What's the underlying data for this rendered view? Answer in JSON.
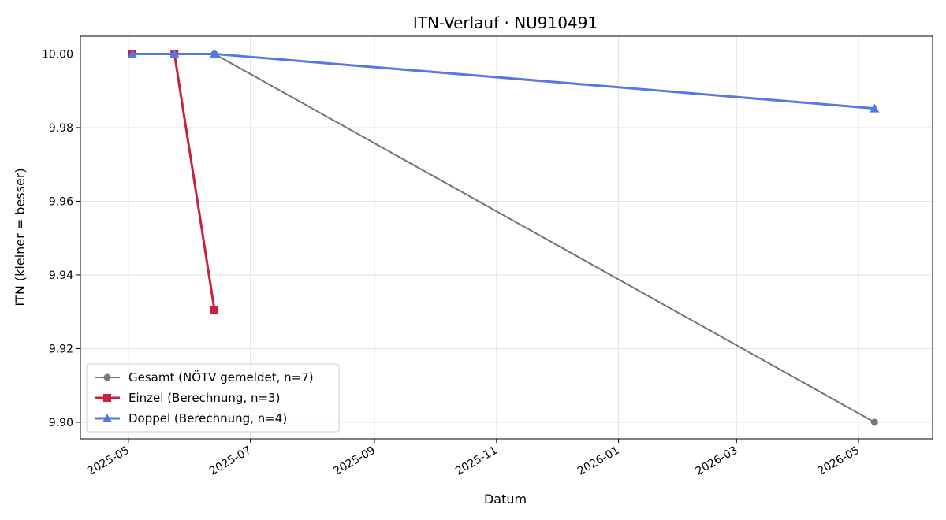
{
  "chart_data": {
    "type": "line",
    "title": "ITN-Verlauf · NU910491",
    "xlabel": "Datum",
    "ylabel": "ITN  (kleiner = besser)",
    "xlim": [
      "2025-04-07",
      "2026-06-07"
    ],
    "ylim": [
      9.8955,
      10.0048
    ],
    "x_ticks": [
      "2025-05",
      "2025-07",
      "2025-09",
      "2025-11",
      "2026-01",
      "2026-03",
      "2026-05"
    ],
    "y_ticks": [
      "9.90",
      "9.92",
      "9.94",
      "9.96",
      "9.98",
      "10.00"
    ],
    "grid": true,
    "legend_position": "lower-left",
    "series": [
      {
        "name": "Gesamt (NÖTV gemeldet, n=7)",
        "color": "#737373",
        "marker": "circle",
        "points": [
          {
            "x": "2025-06-13",
            "y": 10.0
          },
          {
            "x": "2026-05-09",
            "y": 9.9
          }
        ]
      },
      {
        "name": "Einzel (Berechnung, n=3)",
        "color": "#c8213f",
        "marker": "square",
        "points": [
          {
            "x": "2025-05-03",
            "y": 10.0
          },
          {
            "x": "2025-05-24",
            "y": 10.0
          },
          {
            "x": "2025-06-13",
            "y": 9.9305
          }
        ]
      },
      {
        "name": "Doppel (Berechnung, n=4)",
        "color": "#5578e6",
        "marker": "triangle",
        "points": [
          {
            "x": "2025-05-03",
            "y": 10.0
          },
          {
            "x": "2025-05-24",
            "y": 10.0
          },
          {
            "x": "2025-06-13",
            "y": 10.0
          },
          {
            "x": "2026-05-09",
            "y": 9.9852
          }
        ]
      }
    ]
  }
}
